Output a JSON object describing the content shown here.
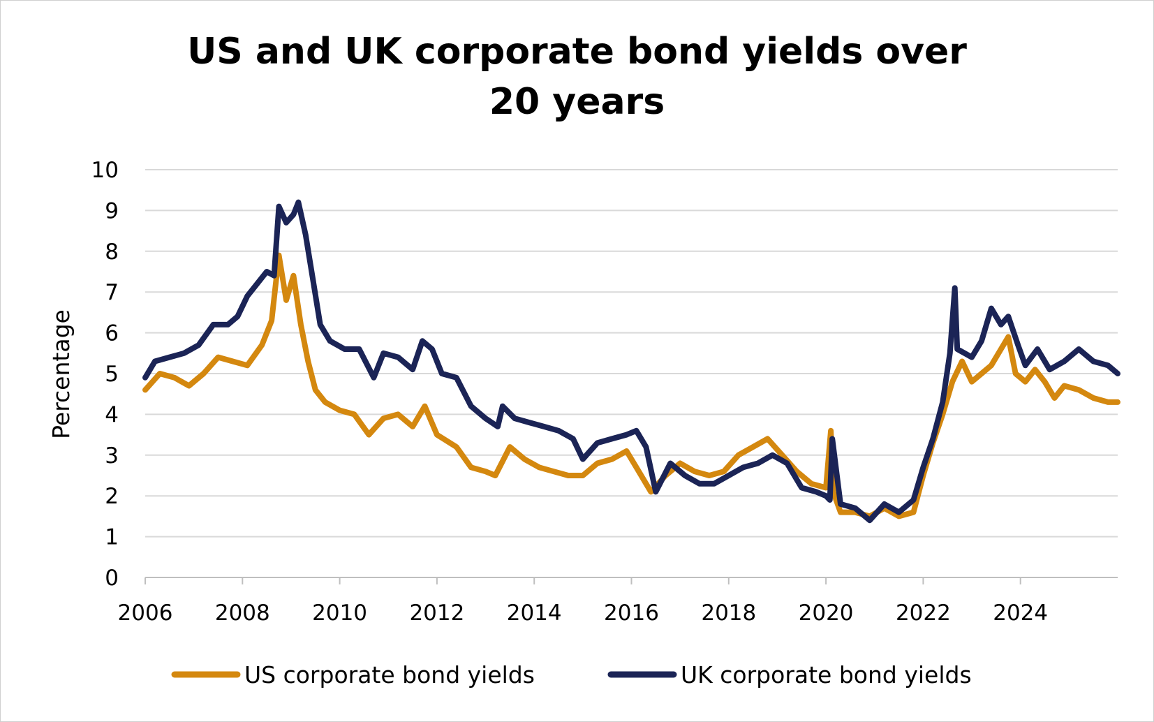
{
  "chart_data": {
    "type": "line",
    "title_lines": [
      "US and UK corporate bond yields over",
      "20 years"
    ],
    "xlabel": "",
    "ylabel": "Percentage",
    "xlim": [
      2006,
      2026
    ],
    "ylim": [
      0,
      10
    ],
    "x_ticks": [
      "2006",
      "2008",
      "2010",
      "2012",
      "2014",
      "2016",
      "2018",
      "2020",
      "2022",
      "2024"
    ],
    "y_ticks": [
      "0",
      "1",
      "2",
      "3",
      "4",
      "5",
      "6",
      "7",
      "8",
      "9",
      "10"
    ],
    "grid": true,
    "legend_position": "bottom",
    "series": [
      {
        "name": "US corporate bond yields",
        "color": "#d4880f",
        "x": [
          2006.0,
          2006.3,
          2006.6,
          2006.9,
          2007.2,
          2007.5,
          2007.8,
          2008.1,
          2008.4,
          2008.6,
          2008.75,
          2008.9,
          2009.05,
          2009.2,
          2009.35,
          2009.5,
          2009.7,
          2010.0,
          2010.3,
          2010.6,
          2010.9,
          2011.2,
          2011.5,
          2011.75,
          2012.0,
          2012.4,
          2012.7,
          2013.0,
          2013.2,
          2013.5,
          2013.8,
          2014.1,
          2014.4,
          2014.7,
          2015.0,
          2015.3,
          2015.6,
          2015.9,
          2016.1,
          2016.4,
          2016.7,
          2017.0,
          2017.3,
          2017.6,
          2017.9,
          2018.2,
          2018.5,
          2018.8,
          2019.1,
          2019.4,
          2019.7,
          2020.0,
          2020.1,
          2020.15,
          2020.3,
          2020.6,
          2020.9,
          2021.2,
          2021.5,
          2021.8,
          2022.0,
          2022.2,
          2022.4,
          2022.6,
          2022.8,
          2023.0,
          2023.2,
          2023.4,
          2023.6,
          2023.75,
          2023.9,
          2024.1,
          2024.3,
          2024.5,
          2024.7,
          2024.9,
          2025.2,
          2025.5,
          2025.8,
          2026.0
        ],
        "values": [
          4.6,
          5.0,
          4.9,
          4.7,
          5.0,
          5.4,
          5.3,
          5.2,
          5.7,
          6.3,
          7.9,
          6.8,
          7.4,
          6.2,
          5.3,
          4.6,
          4.3,
          4.1,
          4.0,
          3.5,
          3.9,
          4.0,
          3.7,
          4.2,
          3.5,
          3.2,
          2.7,
          2.6,
          2.5,
          3.2,
          2.9,
          2.7,
          2.6,
          2.5,
          2.5,
          2.8,
          2.9,
          3.1,
          2.7,
          2.1,
          2.5,
          2.8,
          2.6,
          2.5,
          2.6,
          3.0,
          3.2,
          3.4,
          3.0,
          2.6,
          2.3,
          2.2,
          3.6,
          2.1,
          1.6,
          1.6,
          1.5,
          1.7,
          1.5,
          1.6,
          2.5,
          3.3,
          4.0,
          4.8,
          5.3,
          4.8,
          5.0,
          5.2,
          5.6,
          5.9,
          5.0,
          4.8,
          5.1,
          4.8,
          4.4,
          4.7,
          4.6,
          4.4,
          4.3,
          4.3
        ]
      },
      {
        "name": "UK corporate bond yields",
        "color": "#1b2456",
        "x": [
          2006.0,
          2006.2,
          2006.5,
          2006.8,
          2007.1,
          2007.4,
          2007.7,
          2007.9,
          2008.1,
          2008.3,
          2008.5,
          2008.65,
          2008.75,
          2008.9,
          2009.05,
          2009.15,
          2009.3,
          2009.45,
          2009.6,
          2009.8,
          2010.1,
          2010.4,
          2010.7,
          2010.9,
          2011.2,
          2011.5,
          2011.7,
          2011.9,
          2012.1,
          2012.4,
          2012.7,
          2013.0,
          2013.25,
          2013.35,
          2013.6,
          2013.9,
          2014.2,
          2014.5,
          2014.8,
          2015.0,
          2015.3,
          2015.6,
          2015.9,
          2016.1,
          2016.3,
          2016.5,
          2016.8,
          2017.1,
          2017.4,
          2017.7,
          2018.0,
          2018.3,
          2018.6,
          2018.9,
          2019.2,
          2019.5,
          2019.8,
          2020.0,
          2020.08,
          2020.13,
          2020.3,
          2020.6,
          2020.9,
          2021.2,
          2021.5,
          2021.8,
          2022.0,
          2022.2,
          2022.4,
          2022.55,
          2022.65,
          2022.7,
          2022.85,
          2023.0,
          2023.2,
          2023.4,
          2023.6,
          2023.75,
          2023.95,
          2024.1,
          2024.35,
          2024.6,
          2024.9,
          2025.2,
          2025.5,
          2025.8,
          2026.0
        ],
        "values": [
          4.9,
          5.3,
          5.4,
          5.5,
          5.7,
          6.2,
          6.2,
          6.4,
          6.9,
          7.2,
          7.5,
          7.4,
          9.1,
          8.7,
          8.9,
          9.2,
          8.4,
          7.3,
          6.2,
          5.8,
          5.6,
          5.6,
          4.9,
          5.5,
          5.4,
          5.1,
          5.8,
          5.6,
          5.0,
          4.9,
          4.2,
          3.9,
          3.7,
          4.2,
          3.9,
          3.8,
          3.7,
          3.6,
          3.4,
          2.9,
          3.3,
          3.4,
          3.5,
          3.6,
          3.2,
          2.1,
          2.8,
          2.5,
          2.3,
          2.3,
          2.5,
          2.7,
          2.8,
          3.0,
          2.8,
          2.2,
          2.1,
          2.0,
          1.9,
          3.4,
          1.8,
          1.7,
          1.4,
          1.8,
          1.6,
          1.9,
          2.7,
          3.4,
          4.3,
          5.5,
          7.1,
          5.6,
          5.5,
          5.4,
          5.8,
          6.6,
          6.2,
          6.4,
          5.7,
          5.2,
          5.6,
          5.1,
          5.3,
          5.6,
          5.3,
          5.2,
          5.0
        ]
      }
    ]
  }
}
